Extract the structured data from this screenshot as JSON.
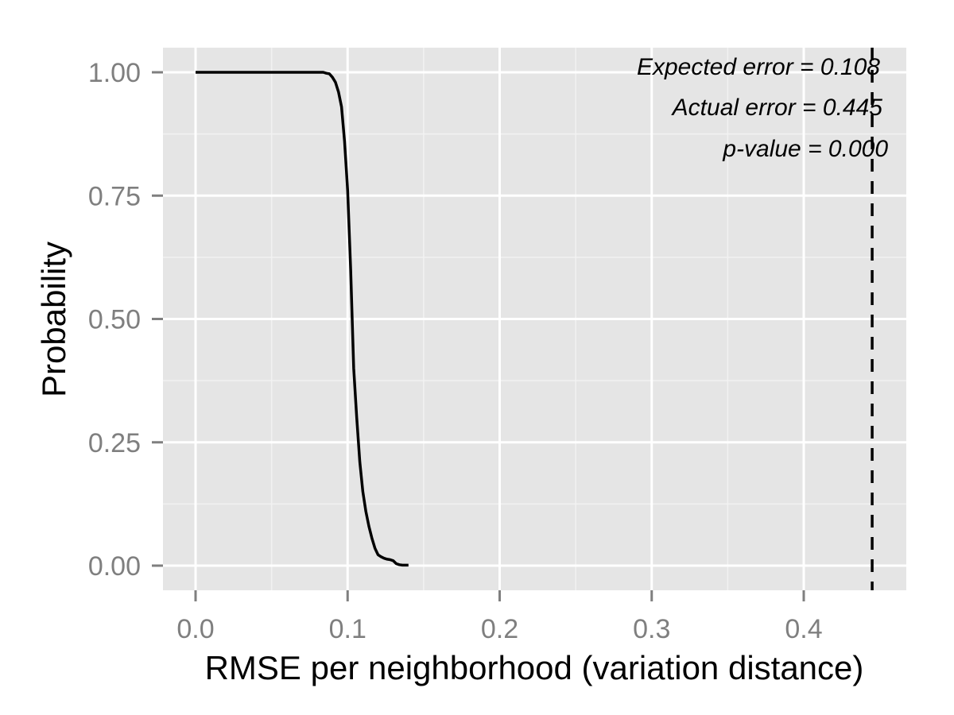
{
  "chart_data": {
    "type": "line",
    "title": "",
    "xlabel": "RMSE per neighborhood (variation distance)",
    "ylabel": "Probability",
    "xlim": [
      -0.022,
      0.467
    ],
    "ylim": [
      -0.05,
      1.05
    ],
    "x_ticks": [
      0.0,
      0.1,
      0.2,
      0.3,
      0.4
    ],
    "x_tick_labels": [
      "0.0",
      "0.1",
      "0.2",
      "0.3",
      "0.4"
    ],
    "y_ticks": [
      0.0,
      0.25,
      0.5,
      0.75,
      1.0
    ],
    "y_tick_labels": [
      "0.00",
      "0.25",
      "0.50",
      "0.75",
      "1.00"
    ],
    "grid": true,
    "background": "#e5e5e5",
    "series": [
      {
        "color": "#000000",
        "x": [
          0.0,
          0.084,
          0.086,
          0.088,
          0.09,
          0.092,
          0.094,
          0.096,
          0.098,
          0.1,
          0.102,
          0.104,
          0.106,
          0.108,
          0.11,
          0.112,
          0.114,
          0.116,
          0.118,
          0.12,
          0.122,
          0.124,
          0.126,
          0.128,
          0.13,
          0.132,
          0.134,
          0.136,
          0.138,
          0.14
        ],
        "y": [
          1.0,
          1.0,
          0.998,
          0.997,
          0.99,
          0.98,
          0.96,
          0.93,
          0.86,
          0.76,
          0.6,
          0.4,
          0.3,
          0.21,
          0.15,
          0.11,
          0.08,
          0.055,
          0.035,
          0.022,
          0.018,
          0.015,
          0.013,
          0.012,
          0.01,
          0.004,
          0.002,
          0.001,
          0.001,
          0.001
        ]
      }
    ],
    "reference_line": {
      "x": 0.445,
      "style": "dashed",
      "color": "#000000"
    },
    "annotations": [
      "Expected error = 0.108",
      "Actual error = 0.445",
      "p-value = 0.000"
    ]
  }
}
